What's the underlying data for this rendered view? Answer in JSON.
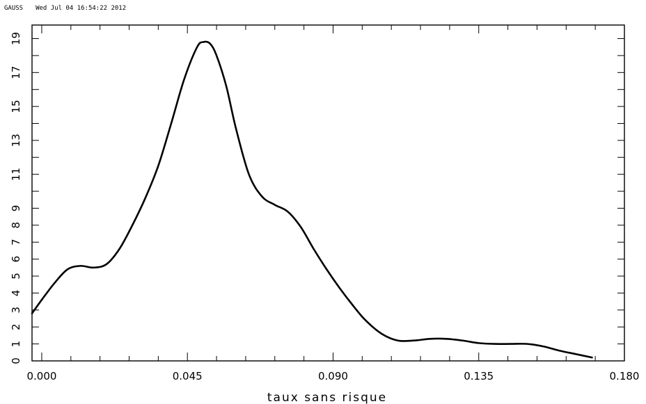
{
  "header": {
    "program": "GAUSS",
    "timestamp": "Wed Jul 04 16:54:22 2012"
  },
  "chart_data": {
    "type": "line",
    "title": "",
    "xlabel": "taux sans risque",
    "ylabel": "",
    "xlim": [
      -0.003,
      0.18
    ],
    "ylim": [
      0,
      19.8
    ],
    "grid": false,
    "x_ticks": [
      "0.000",
      "0.045",
      "0.090",
      "0.135",
      "0.180"
    ],
    "y_ticks": [
      "0",
      "1",
      "2",
      "3",
      "4",
      "5",
      "6",
      "7",
      "8",
      "9",
      "11",
      "13",
      "15",
      "17",
      "19"
    ],
    "series": [
      {
        "name": "",
        "x": [
          -0.003,
          0.0,
          0.004,
          0.008,
          0.012,
          0.016,
          0.02,
          0.024,
          0.028,
          0.032,
          0.036,
          0.04,
          0.044,
          0.048,
          0.05,
          0.052,
          0.054,
          0.057,
          0.06,
          0.064,
          0.068,
          0.072,
          0.076,
          0.08,
          0.084,
          0.088,
          0.092,
          0.096,
          0.1,
          0.105,
          0.11,
          0.115,
          0.12,
          0.125,
          0.13,
          0.135,
          0.14,
          0.145,
          0.15,
          0.155,
          0.16,
          0.165,
          0.17
        ],
        "y": [
          2.8,
          3.6,
          4.6,
          5.4,
          5.6,
          5.5,
          5.7,
          6.6,
          8.0,
          9.6,
          11.5,
          14.0,
          16.6,
          18.5,
          18.8,
          18.7,
          18.0,
          16.2,
          13.7,
          11.0,
          9.7,
          9.2,
          8.8,
          7.9,
          6.6,
          5.4,
          4.3,
          3.3,
          2.4,
          1.6,
          1.2,
          1.2,
          1.3,
          1.3,
          1.2,
          1.05,
          1.0,
          1.0,
          1.0,
          0.85,
          0.6,
          0.4,
          0.2
        ]
      }
    ]
  }
}
